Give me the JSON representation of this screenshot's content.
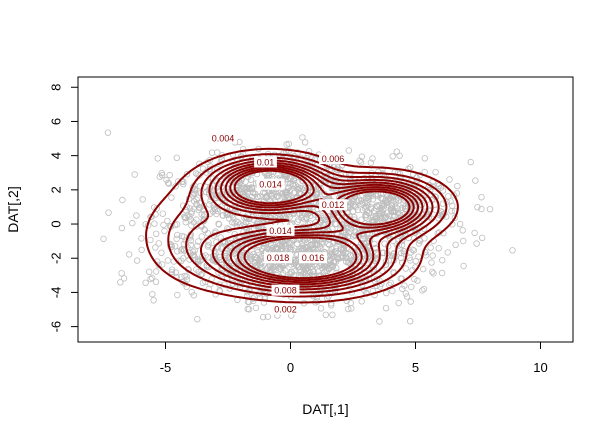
{
  "chart_data": {
    "type": "scatter",
    "title": "",
    "xlabel": "DAT[,1]",
    "ylabel": "DAT[,2]",
    "xlim": [
      -8.5,
      11.3
    ],
    "ylim": [
      -6.9,
      8.6
    ],
    "x_ticks": [
      -5,
      0,
      5,
      10
    ],
    "y_ticks": [
      -6,
      -4,
      -2,
      0,
      2,
      4,
      6,
      8
    ],
    "grid": false,
    "legend": "none",
    "point_color": "#bebebe",
    "contour_color": "#8b0000",
    "density_components": [
      {
        "weight": 0.55,
        "mx": 0.5,
        "my": -2.0,
        "sx": 2.0,
        "sy": 1.1
      },
      {
        "weight": 0.3,
        "mx": -0.8,
        "my": 2.2,
        "sx": 1.4,
        "sy": 0.95
      },
      {
        "weight": 0.3,
        "mx": 3.5,
        "my": 1.0,
        "sx": 1.4,
        "sy": 1.0
      },
      {
        "weight": 0.12,
        "mx": -3.5,
        "my": -0.5,
        "sx": 1.6,
        "sy": 1.8
      }
    ],
    "contour_levels": [
      0.002,
      0.004,
      0.006,
      0.008,
      0.01,
      0.012,
      0.014,
      0.016,
      0.018
    ],
    "contour_labels": [
      {
        "text": "0.002",
        "x": -0.2,
        "y": -5.0
      },
      {
        "text": "0.004",
        "x": -2.7,
        "y": 5.0
      },
      {
        "text": "0.006",
        "x": 1.7,
        "y": 3.8
      },
      {
        "text": "0.008",
        "x": -0.2,
        "y": -3.9
      },
      {
        "text": "0.01",
        "x": -1.0,
        "y": 3.6
      },
      {
        "text": "0.012",
        "x": 1.7,
        "y": 1.1
      },
      {
        "text": "0.014",
        "x": -0.8,
        "y": 2.3
      },
      {
        "text": "0.014",
        "x": -0.4,
        "y": -0.4
      },
      {
        "text": "0.016",
        "x": 0.9,
        "y": -2.0
      },
      {
        "text": "0.018",
        "x": -0.5,
        "y": -2.0
      }
    ],
    "scatter_n": 2200,
    "scatter_seed": 7
  }
}
